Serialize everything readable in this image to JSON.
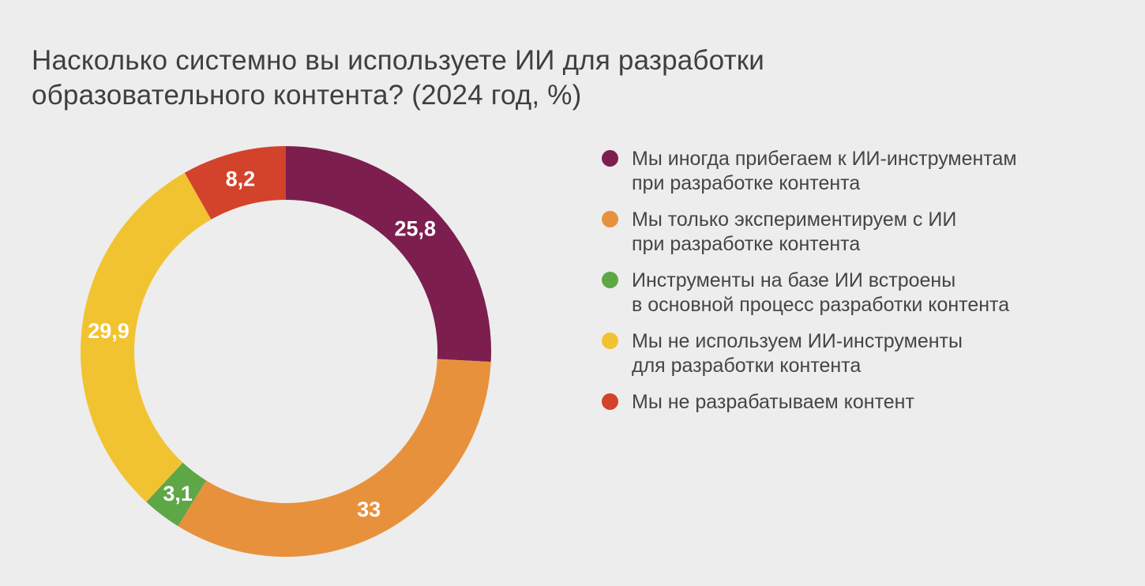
{
  "page": {
    "background": "#EDEDED",
    "title": "Насколько системно вы используете ИИ для разработки\nобразовательного контента? (2024 год, %)",
    "title_color": "#3F3F3F"
  },
  "chart_data": {
    "type": "pie",
    "subtype": "donut",
    "title": "Насколько системно вы используете ИИ для разработки образовательного контента? (2024 год, %)",
    "year": "2024",
    "unit": "%",
    "start_angle_deg_from_top": 0,
    "direction": "clockwise",
    "outer_radius_px": 260,
    "inner_radius_px": 192,
    "value_label_color": "#FFFFFF",
    "legend_position": "right",
    "segments": [
      {
        "label": "Мы иногда прибегаем к ИИ-инструментам при разработке контента",
        "value": 25.8,
        "display": "25,8",
        "color": "#7C1F4E"
      },
      {
        "label": "Мы только экспериментируем с ИИ при разработке контента",
        "value": 33,
        "display": "33",
        "color": "#E8913C"
      },
      {
        "label": "Инструменты на базе ИИ встроены в основной процесс разработки контента",
        "value": 3.1,
        "display": "3,1",
        "color": "#5EA746"
      },
      {
        "label": "Мы не используем ИИ-инструменты для разработки контента",
        "value": 29.9,
        "display": "29,9",
        "color": "#F2C330"
      },
      {
        "label": "Мы не разрабатываем контент",
        "value": 8.2,
        "display": "8,2",
        "color": "#D3432B"
      }
    ]
  },
  "legend": {
    "items": [
      {
        "label": "Мы иногда прибегаем к ИИ-инструментам\nпри разработке контента",
        "color": "#7C1F4E"
      },
      {
        "label": "Мы только экспериментируем с ИИ\nпри разработке контента",
        "color": "#E8913C"
      },
      {
        "label": "Инструменты на базе ИИ встроены\nв основной процесс разработки контента",
        "color": "#5EA746"
      },
      {
        "label": "Мы не используем ИИ-инструменты\nдля разработки контента",
        "color": "#F2C330"
      },
      {
        "label": "Мы не разрабатываем контент",
        "color": "#D3432B"
      }
    ]
  }
}
